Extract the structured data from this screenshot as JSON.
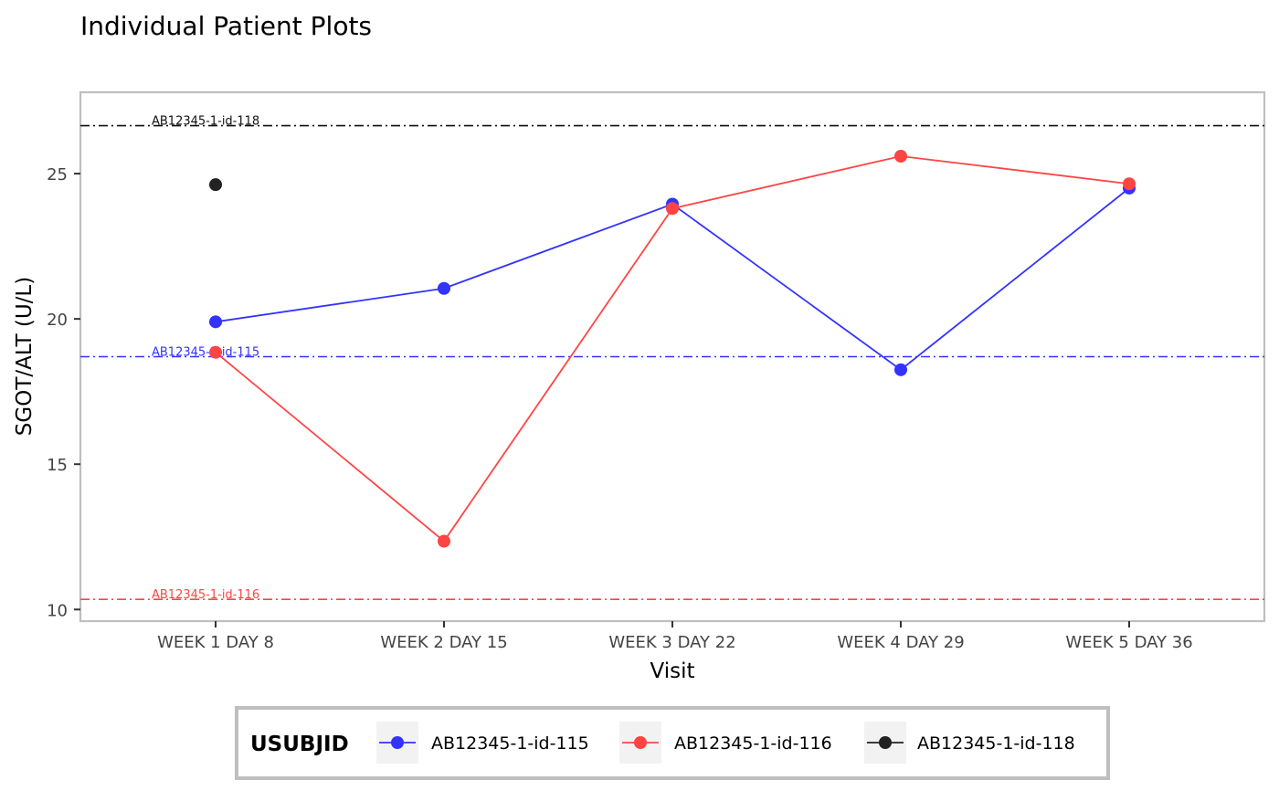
{
  "chart_data": {
    "type": "line",
    "title": "Individual Patient Plots",
    "xlabel": "Visit",
    "ylabel": "SGOT/ALT (U/L)",
    "categories": [
      "WEEK 1 DAY 8",
      "WEEK 2 DAY 15",
      "WEEK 3 DAY 22",
      "WEEK 4 DAY 29",
      "WEEK 5 DAY 36"
    ],
    "ylim": [
      9.6,
      27.8
    ],
    "yticks": [
      10,
      15,
      20,
      25
    ],
    "grid": false,
    "legend": {
      "title": "USUBJID",
      "position": "bottom",
      "entries": [
        "AB12345-1-id-115",
        "AB12345-1-id-116",
        "AB12345-1-id-118"
      ]
    },
    "series": [
      {
        "name": "AB12345-1-id-115",
        "color": "#3333ff",
        "values": [
          19.9,
          21.05,
          23.95,
          18.25,
          24.5
        ]
      },
      {
        "name": "AB12345-1-id-116",
        "color": "#ff4444",
        "values": [
          18.85,
          12.35,
          23.8,
          25.6,
          24.65
        ]
      },
      {
        "name": "AB12345-1-id-118",
        "color": "#222222",
        "values": [
          24.62,
          null,
          null,
          null,
          null
        ]
      }
    ],
    "reference_lines": [
      {
        "label": "AB12345-1-id-118",
        "value": 26.65,
        "color": "#111111"
      },
      {
        "label": "AB12345-1-id-115",
        "value": 18.7,
        "color": "#3333ff"
      },
      {
        "label": "AB12345-1-id-116",
        "value": 10.35,
        "color": "#ff4444"
      }
    ]
  }
}
